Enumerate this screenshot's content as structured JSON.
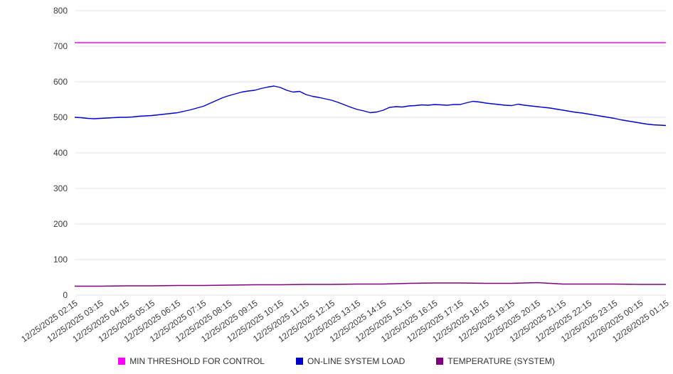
{
  "chart_data": {
    "type": "line",
    "title": "",
    "xlabel": "",
    "ylabel": "",
    "ylim": [
      0,
      800
    ],
    "y_ticks": [
      0,
      100,
      200,
      300,
      400,
      500,
      600,
      700,
      800
    ],
    "grid": true,
    "legend_position": "bottom",
    "x_labels": [
      "12/25/2025 02:15",
      "12/25/2025 03:15",
      "12/25/2025 04:15",
      "12/25/2025 05:15",
      "12/25/2025 06:15",
      "12/25/2025 07:15",
      "12/25/2025 08:15",
      "12/25/2025 09:15",
      "12/25/2025 10:15",
      "12/25/2025 11:15",
      "12/25/2025 12:15",
      "12/25/2025 13:15",
      "12/25/2025 14:15",
      "12/25/2025 15:15",
      "12/25/2025 16:15",
      "12/25/2025 17:15",
      "12/25/2025 18:15",
      "12/25/2025 19:15",
      "12/25/2025 20:15",
      "12/25/2025 21:15",
      "12/25/2025 22:15",
      "12/25/2025 23:15",
      "12/26/2025 00:15",
      "12/26/2025 01:15"
    ],
    "series": [
      {
        "name": "MIN THRESHOLD FOR CONTROL",
        "color": "#ff00ff",
        "values": [
          710,
          710
        ]
      },
      {
        "name": "ON-LINE SYSTEM LOAD",
        "color": "#0000cd",
        "values": [
          500,
          499,
          497,
          496,
          497,
          498,
          499,
          500,
          500,
          501,
          503,
          504,
          505,
          507,
          509,
          511,
          513,
          517,
          521,
          526,
          531,
          539,
          547,
          555,
          561,
          566,
          571,
          574,
          576,
          581,
          585,
          588,
          584,
          576,
          571,
          573,
          564,
          559,
          556,
          552,
          548,
          542,
          535,
          528,
          522,
          518,
          513,
          515,
          520,
          528,
          530,
          529,
          532,
          533,
          535,
          534,
          536,
          535,
          534,
          536,
          536,
          541,
          545,
          543,
          540,
          538,
          536,
          534,
          533,
          537,
          534,
          532,
          530,
          528,
          526,
          523,
          520,
          517,
          514,
          512,
          509,
          506,
          503,
          500,
          497,
          493,
          490,
          487,
          484,
          481,
          479,
          478,
          477
        ]
      },
      {
        "name": "TEMPERATURE (SYSTEM)",
        "color": "#800080",
        "values": [
          25,
          25,
          26,
          26,
          27,
          27,
          28,
          29,
          29,
          30,
          30,
          31,
          31,
          33,
          34,
          34,
          33,
          33,
          35,
          31,
          31,
          31,
          30,
          30
        ]
      }
    ]
  }
}
